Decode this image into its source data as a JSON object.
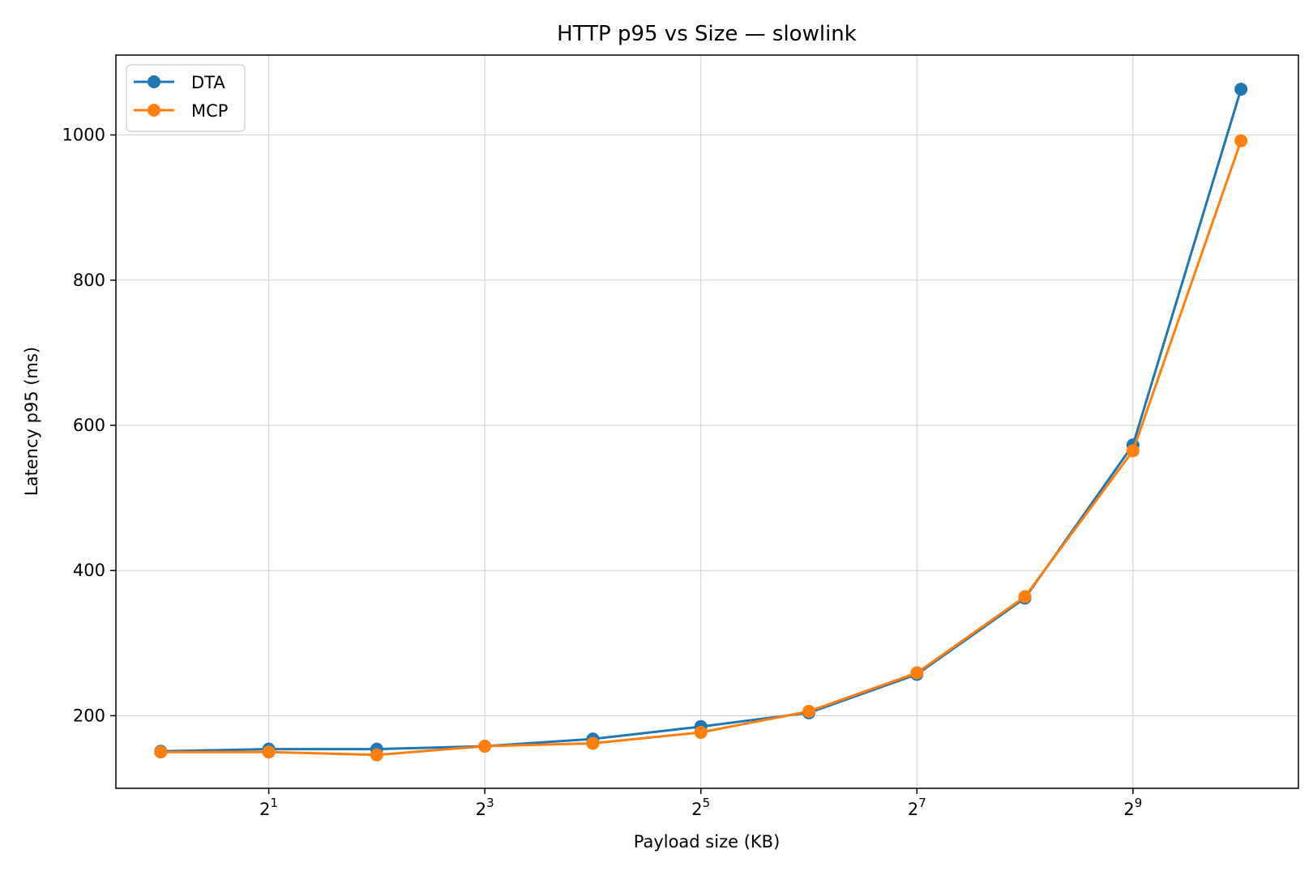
{
  "chart_data": {
    "type": "line",
    "title": "HTTP p95 vs Size — slowlink",
    "xlabel": "Payload size (KB)",
    "ylabel": "Latency p95 (ms)",
    "x_scale": "log2",
    "x": [
      1,
      2,
      4,
      8,
      16,
      32,
      64,
      128,
      256,
      512,
      1024
    ],
    "xlim": [
      0.75,
      1480
    ],
    "ylim": [
      100,
      1110
    ],
    "x_ticks": [
      {
        "value": 2,
        "base": "2",
        "exp": "1"
      },
      {
        "value": 8,
        "base": "2",
        "exp": "3"
      },
      {
        "value": 32,
        "base": "2",
        "exp": "5"
      },
      {
        "value": 128,
        "base": "2",
        "exp": "7"
      },
      {
        "value": 512,
        "base": "2",
        "exp": "9"
      }
    ],
    "y_ticks": [
      200,
      400,
      600,
      800,
      1000
    ],
    "grid": true,
    "legend_position": "top-left",
    "series": [
      {
        "name": "DTA",
        "color": "#1f77b4",
        "values": [
          151,
          154,
          154,
          158,
          168,
          185,
          204,
          257,
          362,
          573,
          1063
        ]
      },
      {
        "name": "MCP",
        "color": "#ff7f0e",
        "values": [
          150,
          150,
          146,
          158,
          162,
          177,
          206,
          259,
          364,
          565,
          992
        ]
      }
    ]
  }
}
